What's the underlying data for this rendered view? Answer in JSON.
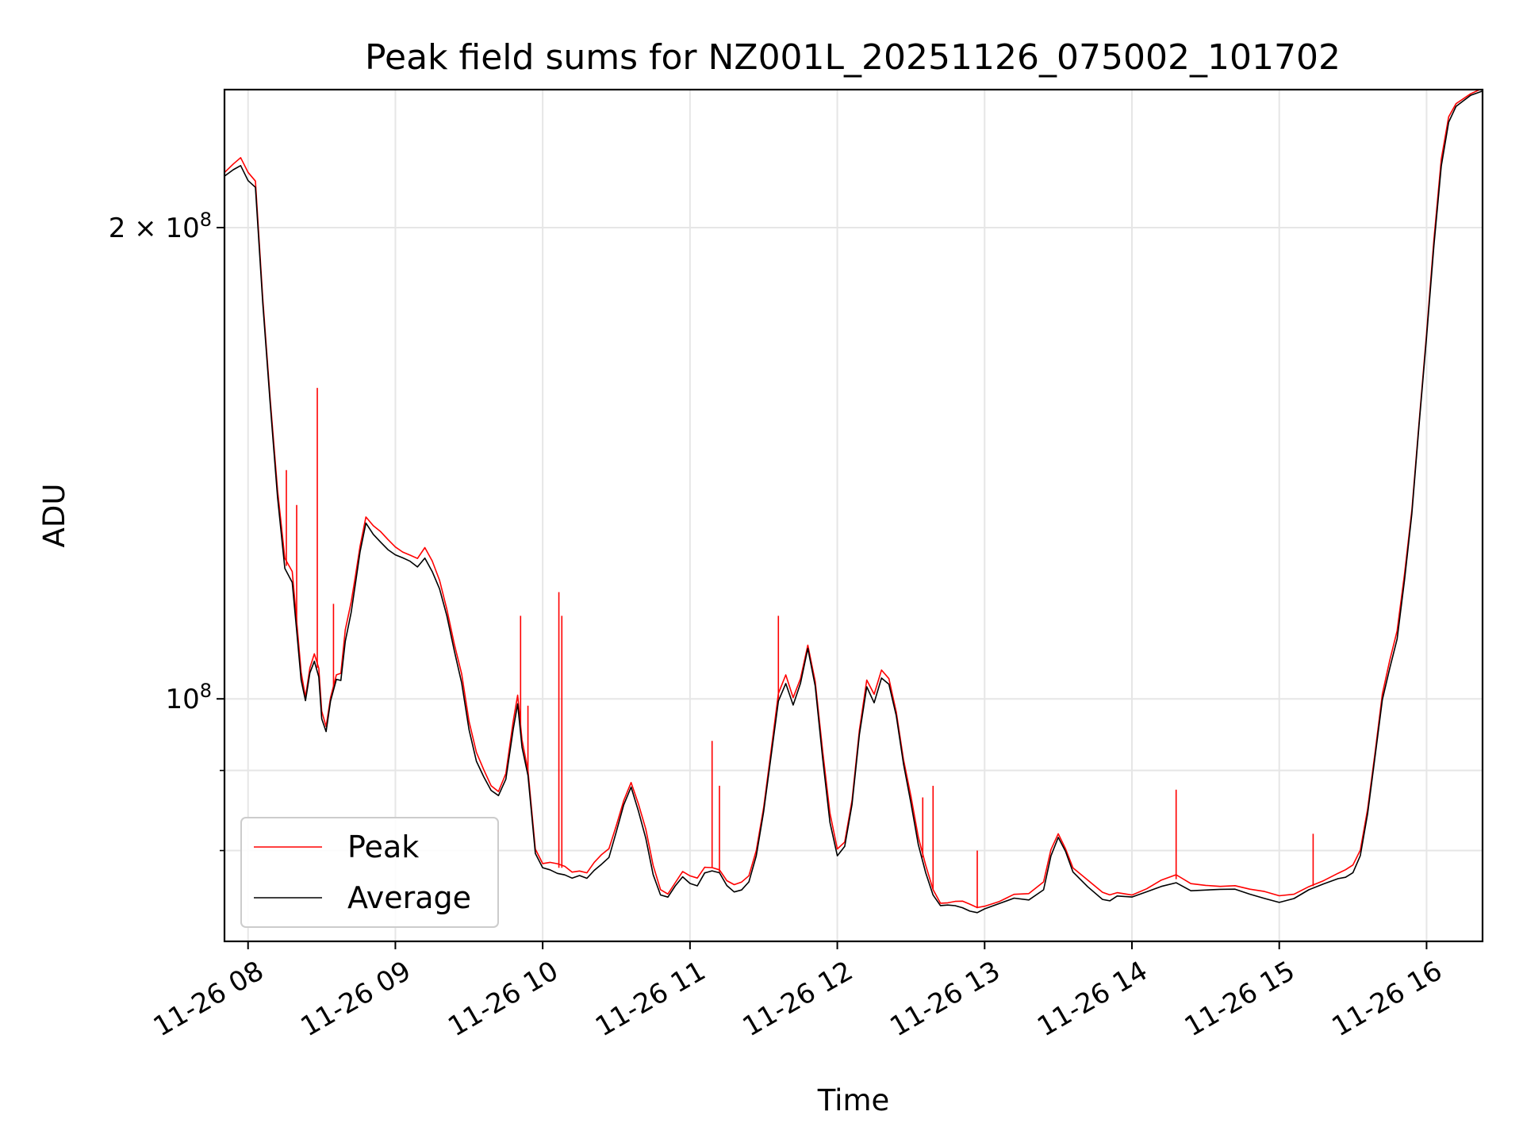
{
  "chart_data": {
    "type": "line",
    "title": "Peak field sums for NZ001L_20251126_075002_101702",
    "xlabel": "Time",
    "ylabel": "ADU",
    "yscale": "log",
    "ylim": [
      70000000,
      245000000
    ],
    "xlim": [
      7.84,
      16.38
    ],
    "grid": true,
    "legend_position": "lower-left",
    "x_ticks": [
      {
        "value": 8,
        "label": "11-26 08"
      },
      {
        "value": 9,
        "label": "11-26 09"
      },
      {
        "value": 10,
        "label": "11-26 10"
      },
      {
        "value": 11,
        "label": "11-26 11"
      },
      {
        "value": 12,
        "label": "11-26 12"
      },
      {
        "value": 13,
        "label": "11-26 13"
      },
      {
        "value": 14,
        "label": "11-26 14"
      },
      {
        "value": 15,
        "label": "11-26 15"
      },
      {
        "value": 16,
        "label": "11-26 16"
      }
    ],
    "y_major_ticks": [
      {
        "value": 100000000,
        "base": "10",
        "exp": "8",
        "mult": ""
      },
      {
        "value": 200000000,
        "base": "10",
        "exp": "8",
        "mult": "2 × "
      }
    ],
    "y_minor_ticks": [
      80000000,
      90000000
    ],
    "series": [
      {
        "name": "Peak",
        "color": "#ff0000",
        "x": [
          7.84,
          7.9,
          7.95,
          8.0,
          8.05,
          8.1,
          8.15,
          8.2,
          8.25,
          8.3,
          8.33,
          8.36,
          8.39,
          8.42,
          8.45,
          8.48,
          8.5,
          8.53,
          8.56,
          8.6,
          8.63,
          8.66,
          8.7,
          8.73,
          8.76,
          8.8,
          8.85,
          8.9,
          8.95,
          9.0,
          9.05,
          9.1,
          9.15,
          9.2,
          9.25,
          9.3,
          9.35,
          9.4,
          9.45,
          9.5,
          9.55,
          9.6,
          9.65,
          9.7,
          9.75,
          9.8,
          9.83,
          9.86,
          9.9,
          9.95,
          10.0,
          10.05,
          10.1,
          10.15,
          10.2,
          10.25,
          10.3,
          10.35,
          10.4,
          10.45,
          10.5,
          10.55,
          10.6,
          10.65,
          10.7,
          10.75,
          10.8,
          10.85,
          10.9,
          10.95,
          11.0,
          11.05,
          11.1,
          11.15,
          11.2,
          11.25,
          11.3,
          11.35,
          11.4,
          11.45,
          11.5,
          11.55,
          11.6,
          11.65,
          11.7,
          11.75,
          11.8,
          11.85,
          11.9,
          11.95,
          12.0,
          12.05,
          12.1,
          12.15,
          12.2,
          12.25,
          12.3,
          12.35,
          12.4,
          12.45,
          12.5,
          12.55,
          12.6,
          12.65,
          12.7,
          12.75,
          12.8,
          12.85,
          12.9,
          12.95,
          13.0,
          13.1,
          13.2,
          13.3,
          13.4,
          13.45,
          13.5,
          13.55,
          13.6,
          13.7,
          13.8,
          13.85,
          13.9,
          14.0,
          14.1,
          14.2,
          14.3,
          14.4,
          14.5,
          14.6,
          14.7,
          14.8,
          14.9,
          15.0,
          15.1,
          15.2,
          15.3,
          15.4,
          15.45,
          15.5,
          15.55,
          15.6,
          15.65,
          15.7,
          15.75,
          15.8,
          15.85,
          15.9,
          15.95,
          16.0,
          16.05,
          16.1,
          16.15,
          16.2,
          16.3,
          16.38
        ],
        "y": [
          216000000,
          218000000,
          220000000,
          216000000,
          214000000,
          180000000,
          155000000,
          135000000,
          122000000,
          120000000,
          112000000,
          104000000,
          100000000,
          104000000,
          106000000,
          104000000,
          98000000,
          96000000,
          100000000,
          103000000,
          103000000,
          110000000,
          115000000,
          120000000,
          125000000,
          130000000,
          128000000,
          127000000,
          126000000,
          125000000,
          124000000,
          123000000,
          122000000,
          124000000,
          122000000,
          119000000,
          114000000,
          108000000,
          103000000,
          96000000,
          92000000,
          90000000,
          88000000,
          87000000,
          89000000,
          96000000,
          100000000,
          94000000,
          90000000,
          80000000,
          78000000,
          78000000,
          78000000,
          78000000,
          77500000,
          77500000,
          77000000,
          78000000,
          79000000,
          80000000,
          83000000,
          86000000,
          88000000,
          85000000,
          82000000,
          78000000,
          75500000,
          75000000,
          76000000,
          77000000,
          76500000,
          76500000,
          78000000,
          78000000,
          77500000,
          76000000,
          75500000,
          76000000,
          77000000,
          80000000,
          85000000,
          92000000,
          100000000,
          103000000,
          100000000,
          103000000,
          108000000,
          102000000,
          92000000,
          84000000,
          80000000,
          81000000,
          86000000,
          95000000,
          102000000,
          100000000,
          104000000,
          103000000,
          98000000,
          91000000,
          86000000,
          81000000,
          78000000,
          75500000,
          74000000,
          73800000,
          73700000,
          73700000,
          73600000,
          73500000,
          73700000,
          74000000,
          74500000,
          74500000,
          76000000,
          80000000,
          82000000,
          80000000,
          77500000,
          76000000,
          74800000,
          74800000,
          75200000,
          74800000,
          75200000,
          76000000,
          76700000,
          76000000,
          76000000,
          75800000,
          75600000,
          75000000,
          74800000,
          74600000,
          75000000,
          75800000,
          76200000,
          76800000,
          77200000,
          78000000,
          80000000,
          85000000,
          92000000,
          100000000,
          105000000,
          110000000,
          120000000,
          132000000,
          150000000,
          170000000,
          195000000,
          220000000,
          235000000,
          240000000,
          243000000,
          244000000
        ],
        "spikes": [
          {
            "x": 8.26,
            "y": 140000000
          },
          {
            "x": 8.33,
            "y": 133000000
          },
          {
            "x": 8.47,
            "y": 158000000
          },
          {
            "x": 8.58,
            "y": 115000000
          },
          {
            "x": 9.85,
            "y": 113000000
          },
          {
            "x": 9.9,
            "y": 99000000
          },
          {
            "x": 10.11,
            "y": 117000000
          },
          {
            "x": 10.13,
            "y": 113000000
          },
          {
            "x": 11.15,
            "y": 94000000
          },
          {
            "x": 11.2,
            "y": 88000000
          },
          {
            "x": 11.6,
            "y": 113000000
          },
          {
            "x": 12.58,
            "y": 86500000
          },
          {
            "x": 12.65,
            "y": 88000000
          },
          {
            "x": 12.95,
            "y": 80000000
          },
          {
            "x": 14.3,
            "y": 87500000
          },
          {
            "x": 15.23,
            "y": 82000000
          }
        ]
      },
      {
        "name": "Average",
        "color": "#000000",
        "x": [
          7.84,
          7.9,
          7.95,
          8.0,
          8.05,
          8.1,
          8.15,
          8.2,
          8.25,
          8.3,
          8.33,
          8.36,
          8.39,
          8.42,
          8.45,
          8.48,
          8.5,
          8.53,
          8.56,
          8.6,
          8.63,
          8.66,
          8.7,
          8.73,
          8.76,
          8.8,
          8.85,
          8.9,
          8.95,
          9.0,
          9.05,
          9.1,
          9.15,
          9.2,
          9.25,
          9.3,
          9.35,
          9.4,
          9.45,
          9.5,
          9.55,
          9.6,
          9.65,
          9.7,
          9.75,
          9.8,
          9.83,
          9.86,
          9.9,
          9.95,
          10.0,
          10.05,
          10.1,
          10.15,
          10.2,
          10.25,
          10.3,
          10.35,
          10.4,
          10.45,
          10.5,
          10.55,
          10.6,
          10.65,
          10.7,
          10.75,
          10.8,
          10.85,
          10.9,
          10.95,
          11.0,
          11.05,
          11.1,
          11.15,
          11.2,
          11.25,
          11.3,
          11.35,
          11.4,
          11.45,
          11.5,
          11.55,
          11.6,
          11.65,
          11.7,
          11.75,
          11.8,
          11.85,
          11.9,
          11.95,
          12.0,
          12.05,
          12.1,
          12.15,
          12.2,
          12.25,
          12.3,
          12.35,
          12.4,
          12.45,
          12.5,
          12.55,
          12.6,
          12.65,
          12.7,
          12.75,
          12.8,
          12.85,
          12.9,
          12.95,
          13.0,
          13.1,
          13.2,
          13.3,
          13.4,
          13.45,
          13.5,
          13.55,
          13.6,
          13.7,
          13.8,
          13.85,
          13.9,
          14.0,
          14.1,
          14.2,
          14.3,
          14.4,
          14.5,
          14.6,
          14.7,
          14.8,
          14.9,
          15.0,
          15.1,
          15.2,
          15.3,
          15.4,
          15.45,
          15.5,
          15.55,
          15.6,
          15.65,
          15.7,
          15.75,
          15.8,
          15.85,
          15.9,
          15.95,
          16.0,
          16.05,
          16.1,
          16.15,
          16.2,
          16.3,
          16.38
        ],
        "y": [
          215000000,
          217000000,
          219000000,
          215000000,
          213000000,
          179000000,
          154000000,
          134000000,
          121000000,
          119000000,
          111000000,
          103000000,
          99500000,
          103500000,
          105500000,
          103500000,
          97500000,
          95500000,
          99500000,
          102500000,
          102500000,
          109000000,
          114000000,
          119000000,
          124000000,
          129000000,
          127000000,
          126000000,
          125000000,
          124000000,
          123000000,
          122000000,
          121000000,
          123000000,
          121000000,
          118000000,
          113000000,
          107000000,
          102000000,
          95500000,
          91500000,
          89500000,
          87500000,
          86500000,
          88500000,
          95500000,
          99500000,
          93500000,
          89500000,
          79500000,
          77700000,
          77600000,
          77500000,
          77500000,
          77000000,
          77000000,
          76500000,
          77500000,
          78500000,
          79500000,
          82500000,
          85500000,
          87500000,
          84500000,
          81500000,
          77500000,
          75200000,
          74700000,
          75700000,
          76700000,
          76200000,
          76200000,
          77700000,
          77700000,
          77200000,
          75700000,
          75200000,
          75700000,
          76700000,
          79500000,
          84500000,
          91500000,
          99500000,
          102500000,
          99500000,
          102500000,
          107500000,
          101500000,
          91500000,
          83500000,
          79700000,
          80700000,
          85500000,
          94500000,
          101500000,
          99500000,
          103500000,
          102500000,
          97500000,
          90500000,
          85500000,
          80700000,
          77700000,
          75200000,
          73800000,
          73600000,
          73500000,
          73500000,
          73400000,
          73300000,
          73500000,
          73800000,
          74300000,
          74300000,
          75700000,
          79700000,
          81700000,
          79700000,
          77200000,
          75700000,
          74600000,
          74600000,
          75000000,
          74600000,
          75000000,
          75700000,
          76400000,
          75700000,
          75700000,
          75500000,
          75300000,
          74800000,
          74600000,
          74400000,
          74800000,
          75500000,
          75900000,
          76500000,
          76900000,
          77700000,
          79700000,
          84500000,
          91500000,
          99500000,
          104500000,
          109500000,
          119500000,
          131500000,
          149500000,
          169500000,
          194500000,
          219500000,
          234500000,
          239500000,
          242500000,
          243500000
        ]
      }
    ]
  }
}
